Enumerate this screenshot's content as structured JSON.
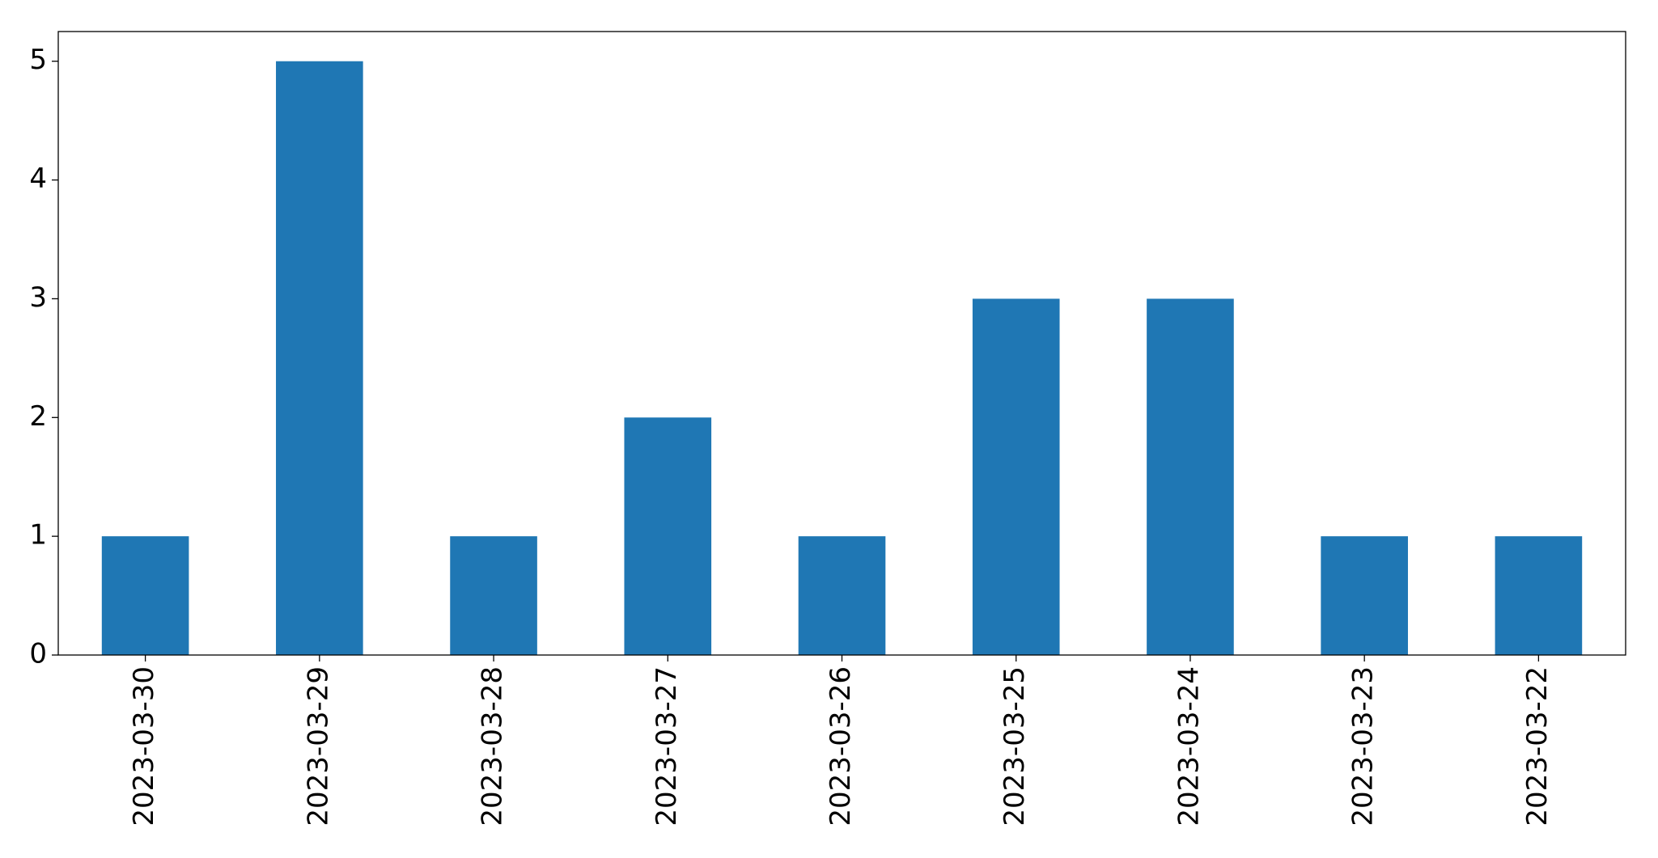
{
  "chart_data": {
    "type": "bar",
    "categories": [
      "2023-03-30",
      "2023-03-29",
      "2023-03-28",
      "2023-03-27",
      "2023-03-26",
      "2023-03-25",
      "2023-03-24",
      "2023-03-23",
      "2023-03-22"
    ],
    "values": [
      1,
      5,
      1,
      2,
      1,
      3,
      3,
      1,
      1
    ],
    "color": "#1f77b4",
    "ylim": [
      0,
      5.25
    ],
    "yticks": [
      0,
      1,
      2,
      3,
      4,
      5
    ],
    "grid": false
  }
}
